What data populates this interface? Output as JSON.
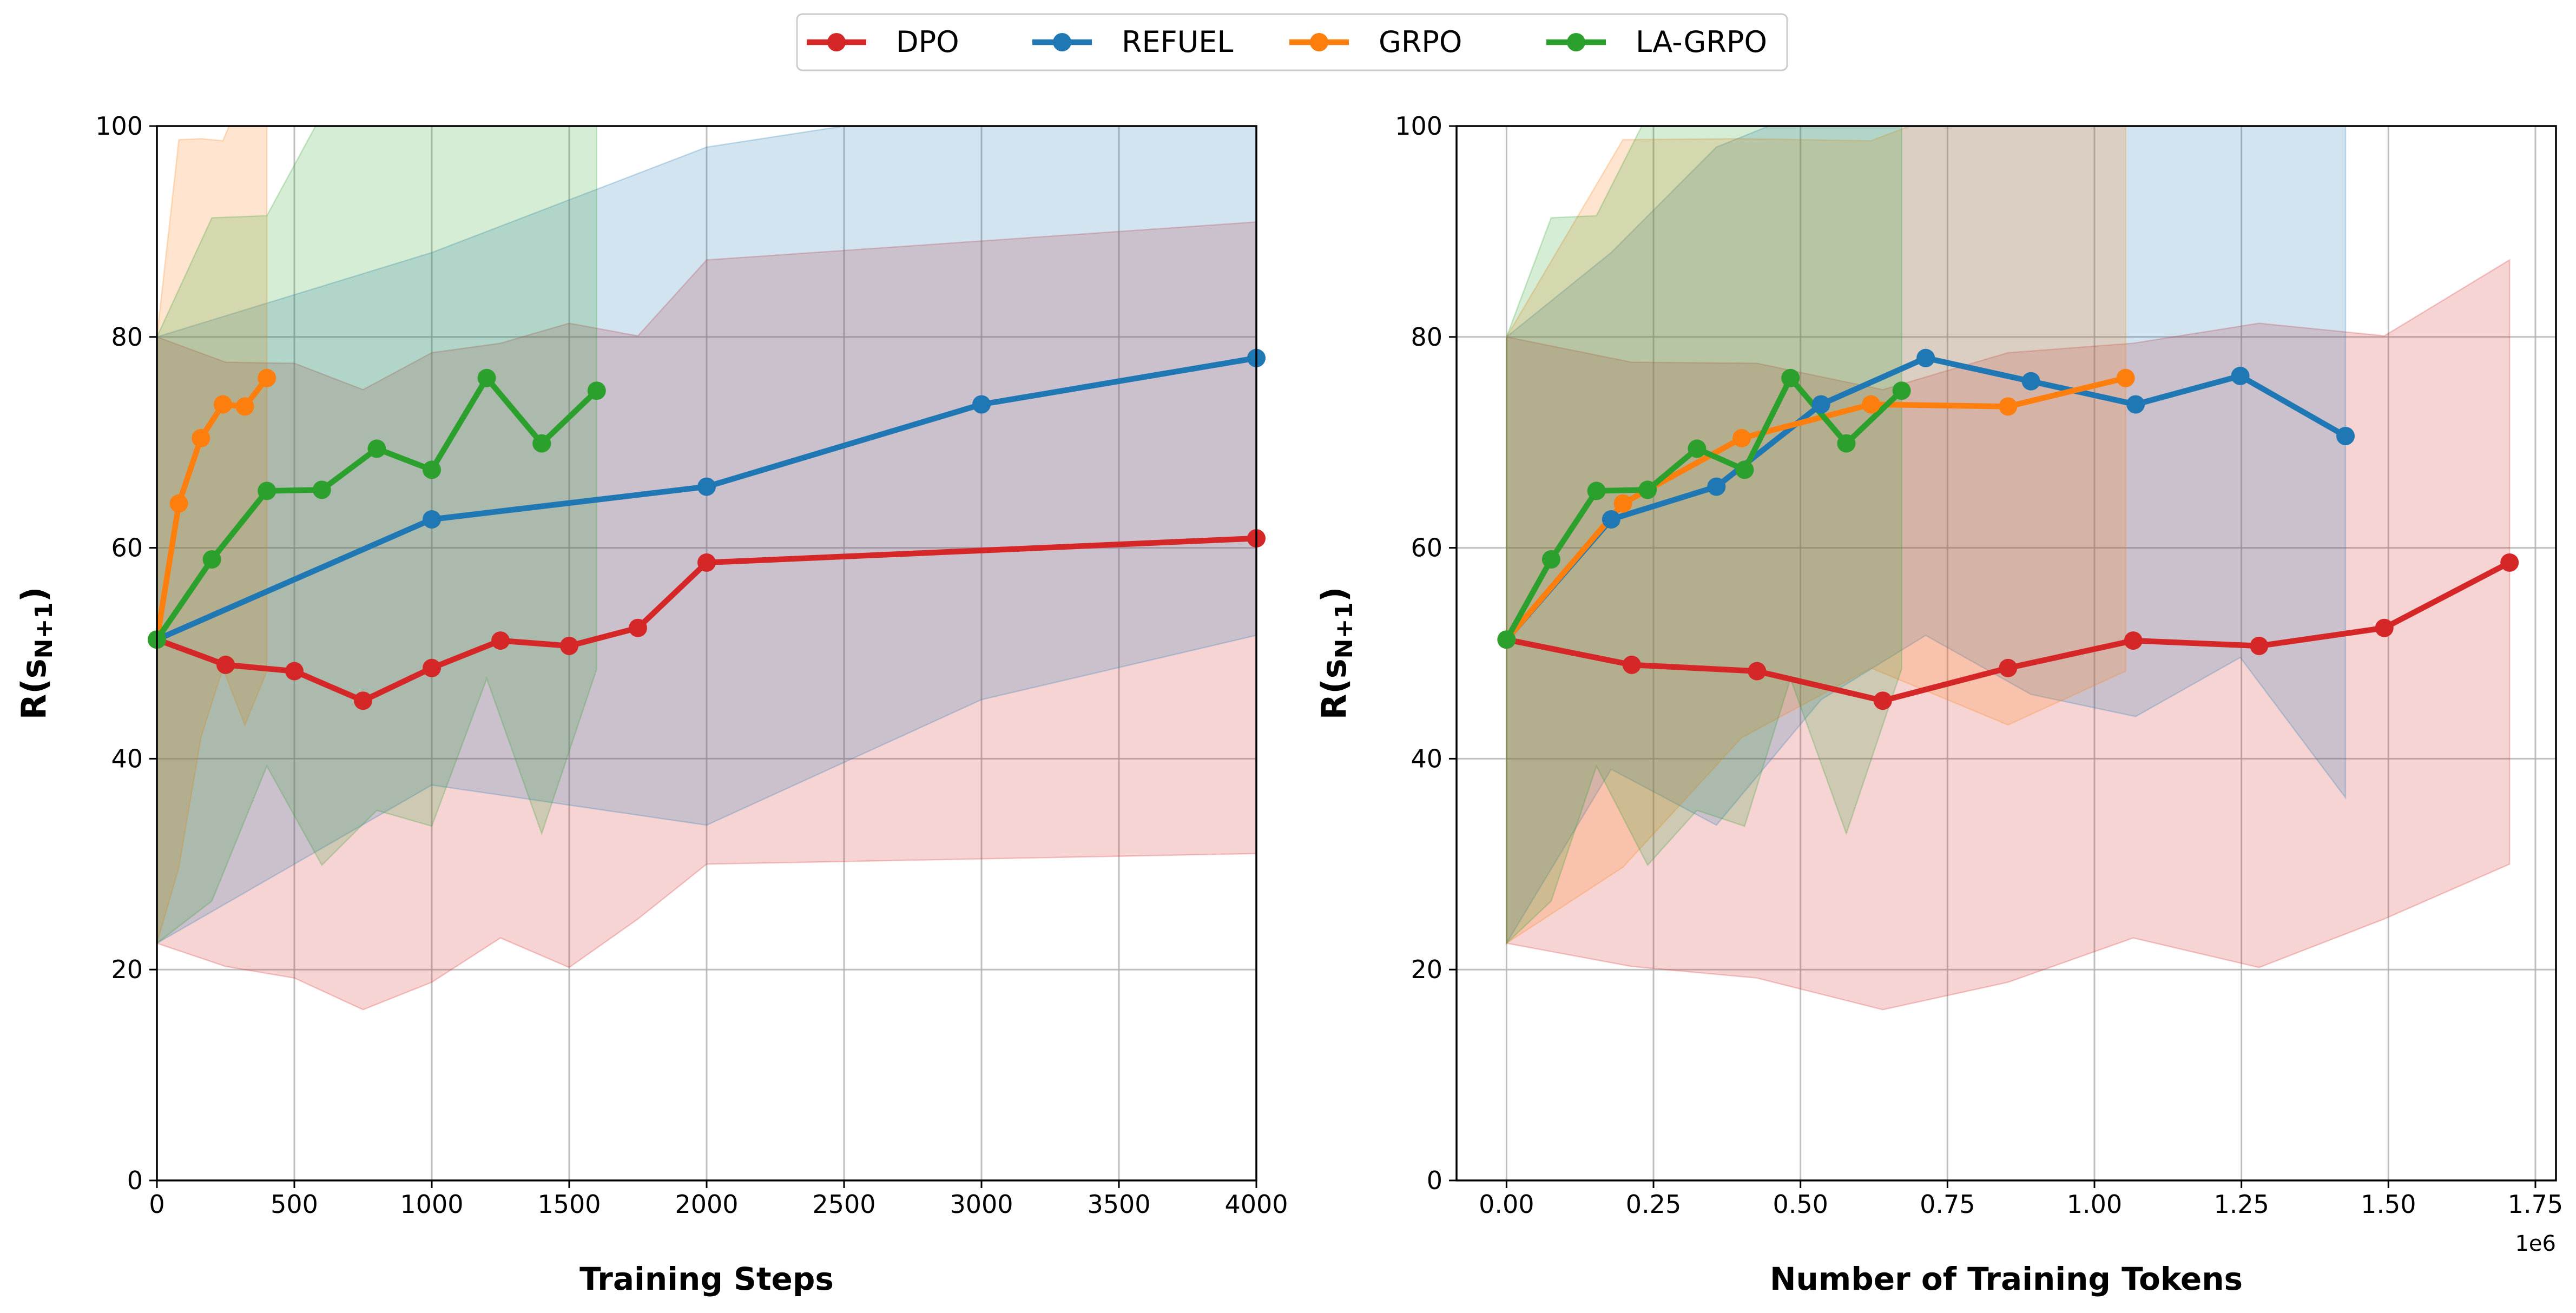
{
  "legend": {
    "placement": "top-center",
    "items": [
      {
        "label": "DPO",
        "color": "#d62728"
      },
      {
        "label": "REFUEL",
        "color": "#1f77b4"
      },
      {
        "label": "GRPO",
        "color": "#ff7f0e"
      },
      {
        "label": "LA-GRPO",
        "color": "#2ca02c"
      }
    ]
  },
  "chart_data": [
    {
      "type": "line",
      "xlabel": "Training Steps",
      "ylabel": "R(s_{N+1})",
      "ylabel_main": "R(",
      "ylabel_sub": "N+1",
      "ylabel_sym": "s",
      "ylabel_close": ")",
      "xlim": [
        0,
        4000
      ],
      "ylim": [
        0,
        100
      ],
      "xticks": [
        0,
        500,
        1000,
        1500,
        2000,
        2500,
        3000,
        3500,
        4000
      ],
      "xtick_labels": [
        "0",
        "500",
        "1000",
        "1500",
        "2000",
        "2500",
        "3000",
        "3500",
        "4000"
      ],
      "yticks": [
        0,
        20,
        40,
        60,
        80,
        100
      ],
      "ytick_labels": [
        "0",
        "20",
        "40",
        "60",
        "80",
        "100"
      ],
      "x_offset_label": "",
      "grid": true,
      "series": [
        {
          "name": "DPO",
          "color": "#d62728",
          "x": [
            0,
            250,
            500,
            750,
            1000,
            1250,
            1500,
            1750,
            2000,
            4000
          ],
          "y": [
            51.3,
            48.9,
            48.3,
            45.5,
            48.6,
            51.2,
            50.7,
            52.4,
            58.6,
            60.9
          ],
          "lower": [
            22.5,
            20.3,
            19.2,
            16.2,
            18.8,
            23.0,
            20.2,
            24.8,
            30.0,
            31.0
          ],
          "upper": [
            80.0,
            77.6,
            77.5,
            75.0,
            78.5,
            79.4,
            81.3,
            80.1,
            87.3,
            90.9
          ]
        },
        {
          "name": "REFUEL",
          "color": "#1f77b4",
          "x": [
            0,
            1000,
            2000,
            3000,
            4000
          ],
          "y": [
            51.3,
            62.7,
            65.8,
            73.6,
            78.0
          ],
          "lower": [
            22.5,
            37.5,
            33.7,
            45.6,
            51.7
          ],
          "upper": [
            80.0,
            88.0,
            98.0,
            102.0,
            104.3
          ]
        },
        {
          "name": "GRPO",
          "color": "#ff7f0e",
          "x": [
            0,
            80,
            160,
            240,
            320,
            400
          ],
          "y": [
            51.3,
            64.2,
            70.4,
            73.6,
            73.4,
            76.1
          ],
          "lower": [
            22.5,
            29.7,
            42.0,
            48.6,
            43.2,
            48.3
          ],
          "upper": [
            80.0,
            98.7,
            98.8,
            98.6,
            103.6,
            103.9
          ]
        },
        {
          "name": "LA-GRPO",
          "color": "#2ca02c",
          "x": [
            0,
            200,
            400,
            600,
            800,
            1000,
            1200,
            1400,
            1600
          ],
          "y": [
            51.3,
            58.9,
            65.4,
            65.5,
            69.4,
            67.4,
            76.1,
            69.9,
            74.9
          ],
          "lower": [
            22.5,
            26.5,
            39.3,
            29.9,
            35.1,
            33.6,
            47.6,
            32.9,
            48.5
          ],
          "upper": [
            80.0,
            91.3,
            91.5,
            101.1,
            103.7,
            101.2,
            104.6,
            106.8,
            101.3
          ]
        }
      ]
    },
    {
      "type": "line",
      "xlabel": "Number of Training Tokens",
      "ylabel": "R(s_{N+1})",
      "ylabel_main": "R(",
      "ylabel_sub": "N+1",
      "ylabel_sym": "s",
      "ylabel_close": ")",
      "xlim": [
        -85000,
        1785000
      ],
      "ylim": [
        0,
        100
      ],
      "xticks": [
        0,
        250000,
        500000,
        750000,
        1000000,
        1250000,
        1500000,
        1750000
      ],
      "xtick_labels": [
        "0.00",
        "0.25",
        "0.50",
        "0.75",
        "1.00",
        "1.25",
        "1.50",
        "1.75"
      ],
      "yticks": [
        0,
        20,
        40,
        60,
        80,
        100
      ],
      "ytick_labels": [
        "0",
        "20",
        "40",
        "60",
        "80",
        "100"
      ],
      "x_offset_label": "1e6",
      "grid": true,
      "series": [
        {
          "name": "DPO",
          "color": "#d62728",
          "x": [
            0,
            213000,
            426000,
            640000,
            853000,
            1066000,
            1280000,
            1493000,
            1706000
          ],
          "y": [
            51.3,
            48.9,
            48.3,
            45.5,
            48.6,
            51.2,
            50.7,
            52.4,
            58.6
          ],
          "lower": [
            22.5,
            20.3,
            19.2,
            16.2,
            18.8,
            23.0,
            20.2,
            24.8,
            30.0
          ],
          "upper": [
            80.0,
            77.6,
            77.5,
            75.0,
            78.5,
            79.4,
            81.3,
            80.1,
            87.3
          ]
        },
        {
          "name": "REFUEL",
          "color": "#1f77b4",
          "x": [
            0,
            178000,
            357000,
            535000,
            713000,
            892000,
            1070000,
            1248000,
            1427000
          ],
          "y": [
            51.3,
            62.7,
            65.8,
            73.6,
            78.0,
            75.8,
            73.6,
            76.3,
            70.6
          ],
          "lower": [
            22.5,
            39.0,
            33.7,
            45.6,
            51.7,
            46.1,
            44.0,
            49.6,
            36.3
          ],
          "upper": [
            80.0,
            88.0,
            98.0,
            102.0,
            104.3,
            104.0,
            102.7,
            103.0,
            104.9
          ]
        },
        {
          "name": "GRPO",
          "color": "#ff7f0e",
          "x": [
            0,
            198000,
            400000,
            620000,
            853000,
            1053000
          ],
          "y": [
            51.3,
            64.2,
            70.4,
            73.6,
            73.4,
            76.1
          ],
          "lower": [
            22.5,
            29.7,
            42.0,
            48.6,
            43.2,
            48.3
          ],
          "upper": [
            80.0,
            98.7,
            98.8,
            98.6,
            103.6,
            103.9
          ]
        },
        {
          "name": "LA-GRPO",
          "color": "#2ca02c",
          "x": [
            0,
            76000,
            153000,
            240000,
            324000,
            405000,
            483000,
            578000,
            672000
          ],
          "y": [
            51.3,
            58.9,
            65.4,
            65.5,
            69.4,
            67.4,
            76.1,
            69.9,
            74.9
          ],
          "lower": [
            22.5,
            26.5,
            39.3,
            29.9,
            35.1,
            33.6,
            47.6,
            32.9,
            48.5
          ],
          "upper": [
            80.0,
            91.3,
            91.5,
            101.1,
            103.7,
            101.2,
            104.6,
            106.8,
            101.3
          ]
        }
      ]
    }
  ]
}
